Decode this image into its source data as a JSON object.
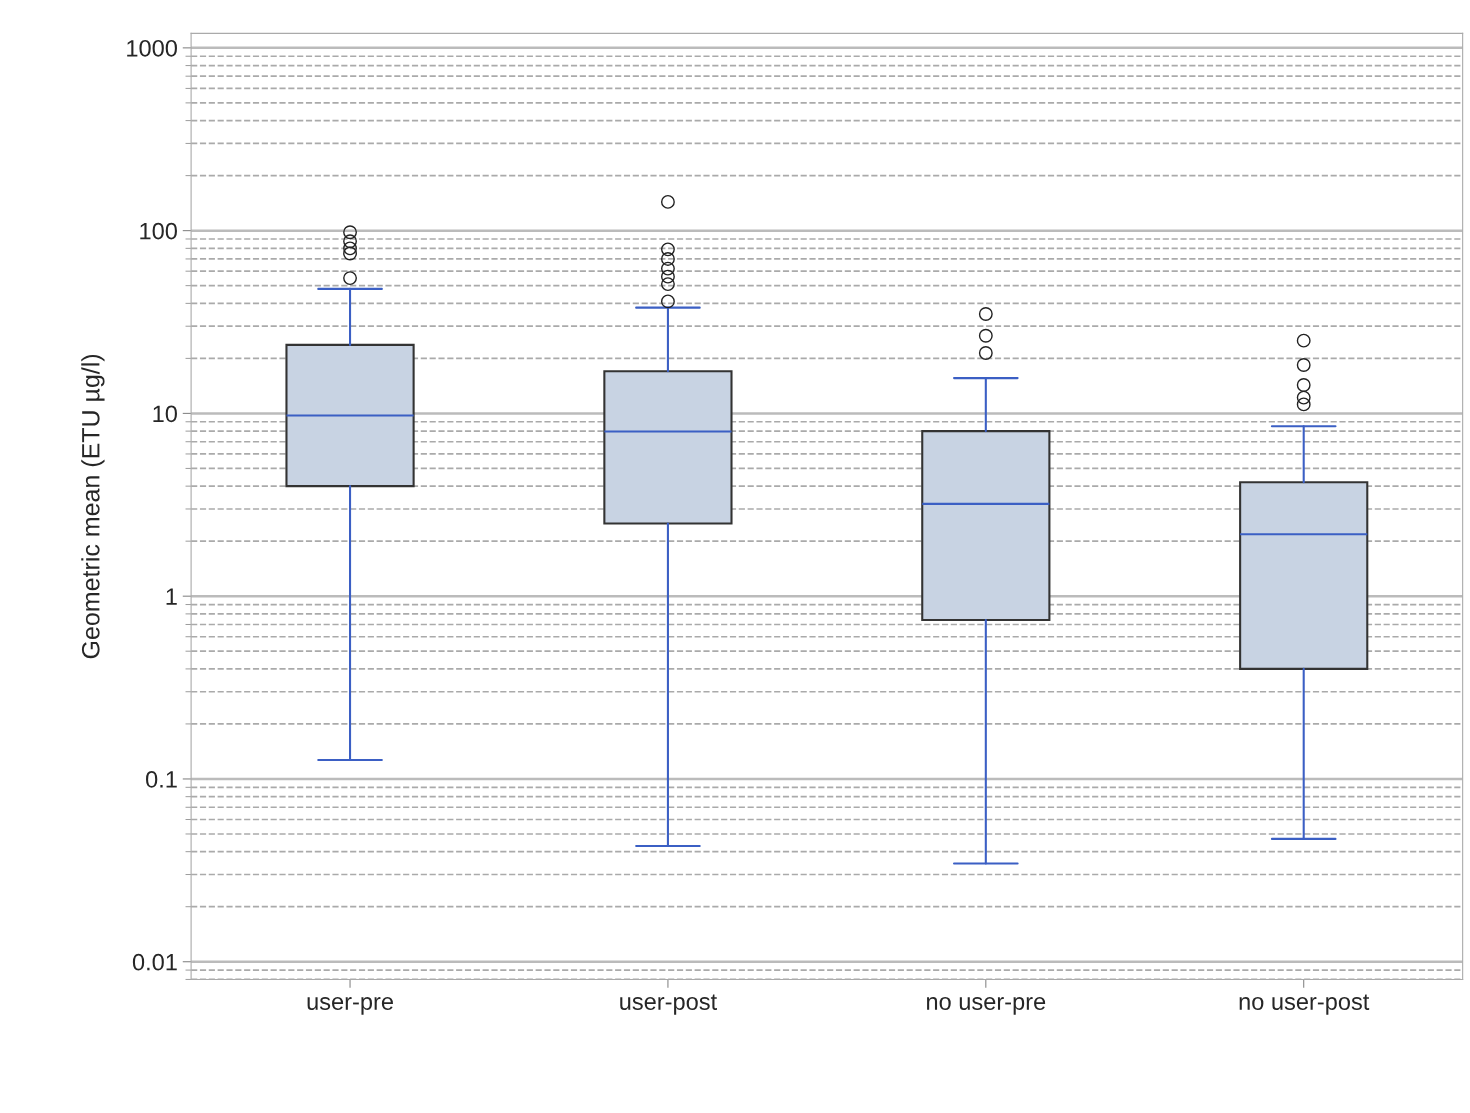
{
  "chart_data": {
    "type": "box",
    "ylabel": "Geometric mean (ETU µg/l)",
    "categories": [
      "user-pre",
      "user-post",
      "no user-pre",
      "no user-post"
    ],
    "boxes": [
      {
        "low": 0.127,
        "q1": 4.0,
        "median": 9.75,
        "q3": 23.7,
        "high": 48,
        "outliers": [
          98,
          87.5,
          80,
          75,
          55
        ]
      },
      {
        "low": 0.043,
        "q1": 2.5,
        "median": 7.96,
        "q3": 17,
        "high": 37.9,
        "outliers": [
          143.6,
          79,
          70,
          62,
          56,
          51,
          41
        ]
      },
      {
        "low": 0.0345,
        "q1": 0.74,
        "median": 3.2,
        "q3": 8,
        "high": 15.6,
        "outliers": [
          35,
          26.6,
          21.4
        ]
      },
      {
        "low": 0.047,
        "q1": 0.4,
        "median": 2.18,
        "q3": 4.2,
        "high": 8.5,
        "outliers": [
          25,
          18.4,
          14.3,
          12.2,
          11.2
        ]
      }
    ],
    "color": "#c8d3e3",
    "log": true,
    "ylim": [
      0.008,
      1200
    ],
    "yticks": [
      0.01,
      0.1,
      1,
      10,
      100,
      1000
    ],
    "grid": "y"
  }
}
